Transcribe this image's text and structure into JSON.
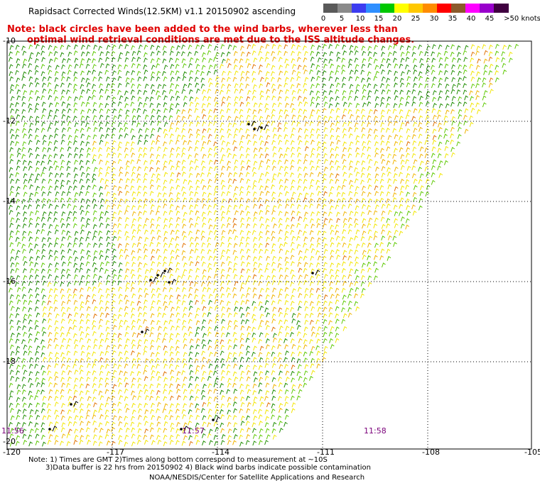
{
  "title": "Rapidsact Corrected Winds(12.5KM) v1.1 20150902 ascending",
  "note": {
    "line1": "Note: black circles have been added to the wind barbs, wherever less than",
    "line2": "optimal wind retrieval conditions are met due to the ISS altitude changes."
  },
  "legend": {
    "labels": [
      "0",
      "5",
      "10",
      "15",
      "20",
      "25",
      "30",
      "35",
      "40",
      "45",
      ">50 knots"
    ],
    "colors": [
      "#5a5a5a",
      "#8a8a8a",
      "#3c3cf0",
      "#2f8fff",
      "#00c800",
      "#ffff00",
      "#ffc800",
      "#ff8c00",
      "#ff0000",
      "#8b5a2b",
      "#ff00ff",
      "#9900cc",
      "#400040"
    ]
  },
  "map": {
    "lon_labels": [
      "-120",
      "-117",
      "-114",
      "-111",
      "-108",
      "-105"
    ],
    "lat_labels": [
      "-10",
      "-12",
      "-14",
      "-16",
      "-18",
      "-20"
    ],
    "time_labels": [
      "11:56",
      "11:57",
      "11:58"
    ],
    "swath_colors": {
      "yellow": "#f2e600",
      "gold": "#f0b400",
      "green": "#1e8c00",
      "lightgreen": "#5cc800",
      "orange": "#e07000",
      "black": "#000000"
    }
  },
  "footer": {
    "line1": "Note: 1) Times are GMT 2)Times along bottom correspond to measurement at ~10S",
    "line2": "3)Data buffer is 22 hrs from 20150902 4) Black wind barbs indicate possible contamination",
    "line3": "NOAA/NESDIS/Center for Satellite Applications and Research"
  }
}
